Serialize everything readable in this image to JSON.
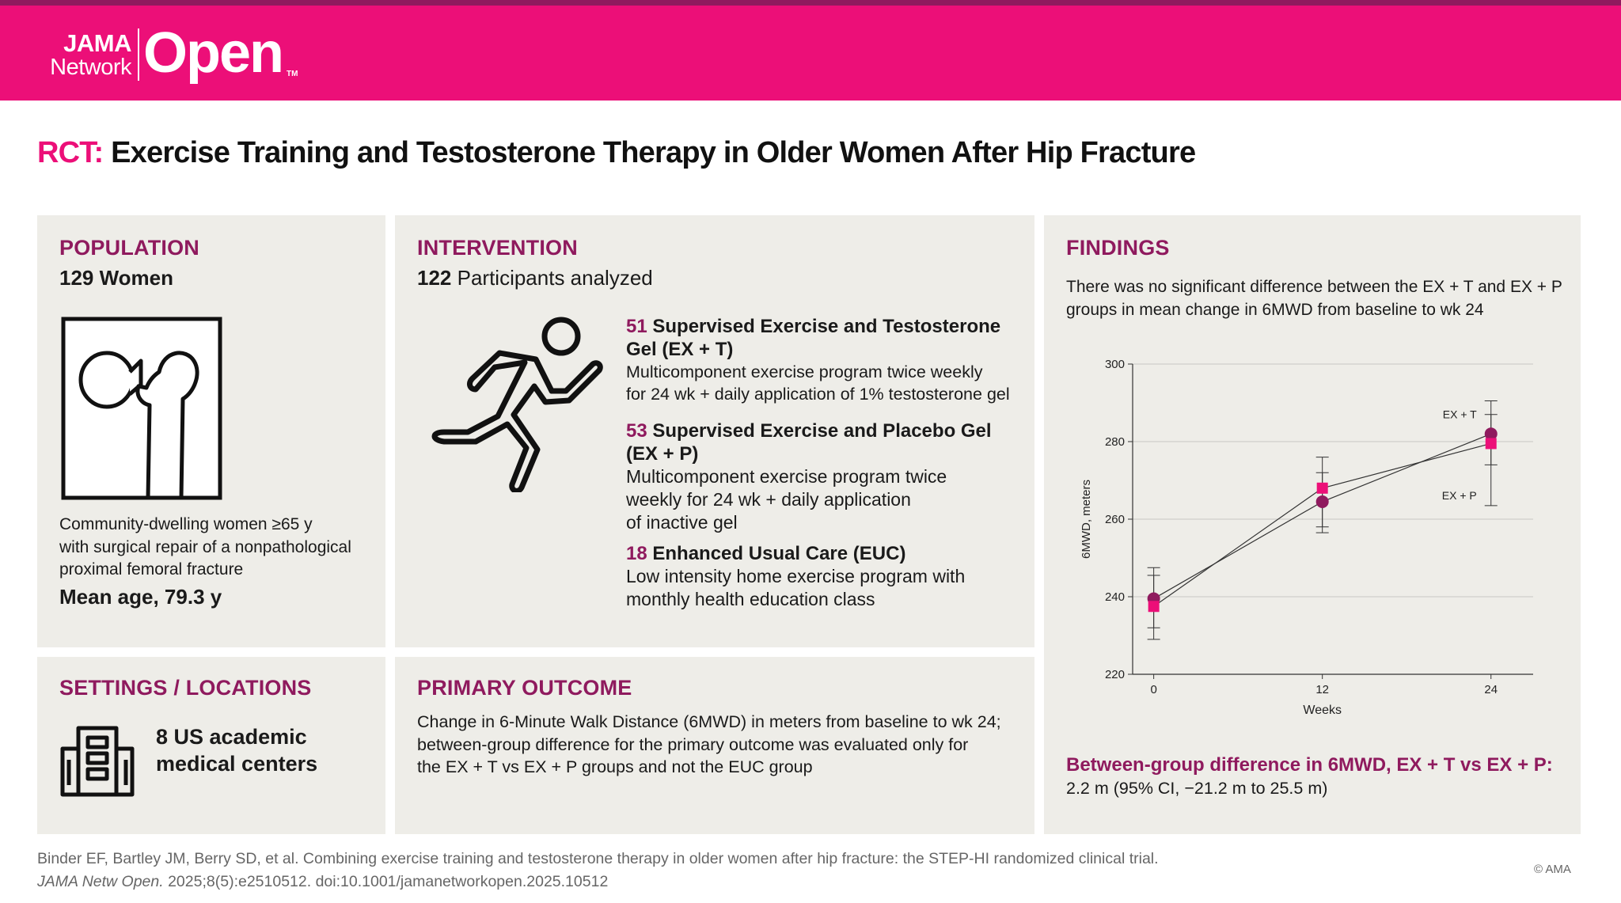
{
  "header": {
    "logo_line1": "JAMA",
    "logo_line2": "Network",
    "logo_main": "Open",
    "logo_tm": "TM"
  },
  "title": {
    "prefix": "RCT:",
    "text": "Exercise Training and Testosterone Therapy in Older Women After Hip Fracture"
  },
  "population": {
    "heading": "POPULATION",
    "count": "129 Women",
    "icon": "hip-bone-icon",
    "description": [
      "Community-dwelling women ≥65 y",
      "with surgical repair of a nonpathological",
      "proximal femoral fracture"
    ],
    "mean_age": "Mean age, 79.3 y"
  },
  "intervention": {
    "heading": "INTERVENTION",
    "analyzed_num": "122",
    "analyzed_text": " Participants analyzed",
    "icon": "running-person-icon",
    "groups": [
      {
        "num": "51",
        "title": [
          " Supervised Exercise and Testosterone",
          "Gel (EX + T)"
        ],
        "desc": [
          "Multicomponent exercise program twice weekly",
          "for 24 wk + daily application of 1% testosterone gel"
        ]
      },
      {
        "num": "53",
        "title": [
          " Supervised Exercise and Placebo Gel",
          "(EX + P)"
        ],
        "desc": [
          "Multicomponent exercise program twice",
          "weekly for 24 wk + daily application",
          "of inactive gel"
        ]
      },
      {
        "num": "18",
        "title": [
          " Enhanced Usual Care (EUC)"
        ],
        "desc": [
          "Low intensity home exercise program with",
          "monthly health education class"
        ]
      }
    ]
  },
  "settings": {
    "heading": "SETTINGS / LOCATIONS",
    "icon": "building-icon",
    "text": [
      "8 US academic",
      "medical centers"
    ]
  },
  "outcome": {
    "heading": "PRIMARY OUTCOME",
    "text": [
      "Change in 6-Minute Walk Distance (6MWD) in meters from baseline to wk 24;",
      "between-group difference for the primary outcome was evaluated only for",
      "the EX + T vs EX + P groups and not the EUC group"
    ]
  },
  "findings": {
    "heading": "FINDINGS",
    "text": [
      "There was no significant difference between the EX + T and EX + P",
      "groups in mean change in 6MWD from baseline to wk 24"
    ],
    "diff_heading": "Between-group difference in 6MWD, EX + T vs EX + P:",
    "diff_value": "2.2 m (95% CI, −21.2 m to 25.5 m)"
  },
  "chart_data": {
    "type": "line",
    "xlabel": "Weeks",
    "ylabel": "6MWD, meters",
    "x_ticks": [
      0,
      12,
      24
    ],
    "y_ticks": [
      220,
      240,
      260,
      280,
      300
    ],
    "xlim": [
      -1.5,
      27
    ],
    "ylim": [
      220,
      300
    ],
    "grid": true,
    "series": [
      {
        "name": "EX + T",
        "marker": "circle",
        "color": "#8f1a5e",
        "x": [
          0,
          12,
          24
        ],
        "y": [
          239.5,
          264.5,
          282
        ],
        "ci_low": [
          232,
          258,
          274
        ],
        "ci_high": [
          247.5,
          272,
          290.5
        ]
      },
      {
        "name": "EX + P",
        "marker": "square",
        "color": "#ec0f78",
        "x": [
          0,
          12,
          24
        ],
        "y": [
          237.5,
          268,
          279.5
        ],
        "ci_low": [
          229,
          256.5,
          263.5
        ],
        "ci_high": [
          245.5,
          276,
          287
        ]
      }
    ]
  },
  "citation": {
    "line1": "Binder EF, Bartley JM, Berry SD, et al. Combining exercise training and testosterone therapy in older women after hip fracture: the STEP-HI randomized clinical trial.",
    "journal": "JAMA Netw Open.",
    "line2_rest": " 2025;8(5):e2510512. doi:10.1001/jamanetworkopen.2025.10512",
    "copyright": "© AMA"
  },
  "colors": {
    "brand_pink": "#ec0f78",
    "brand_plum": "#8f1a5e",
    "panel_bg": "#eeede8"
  }
}
